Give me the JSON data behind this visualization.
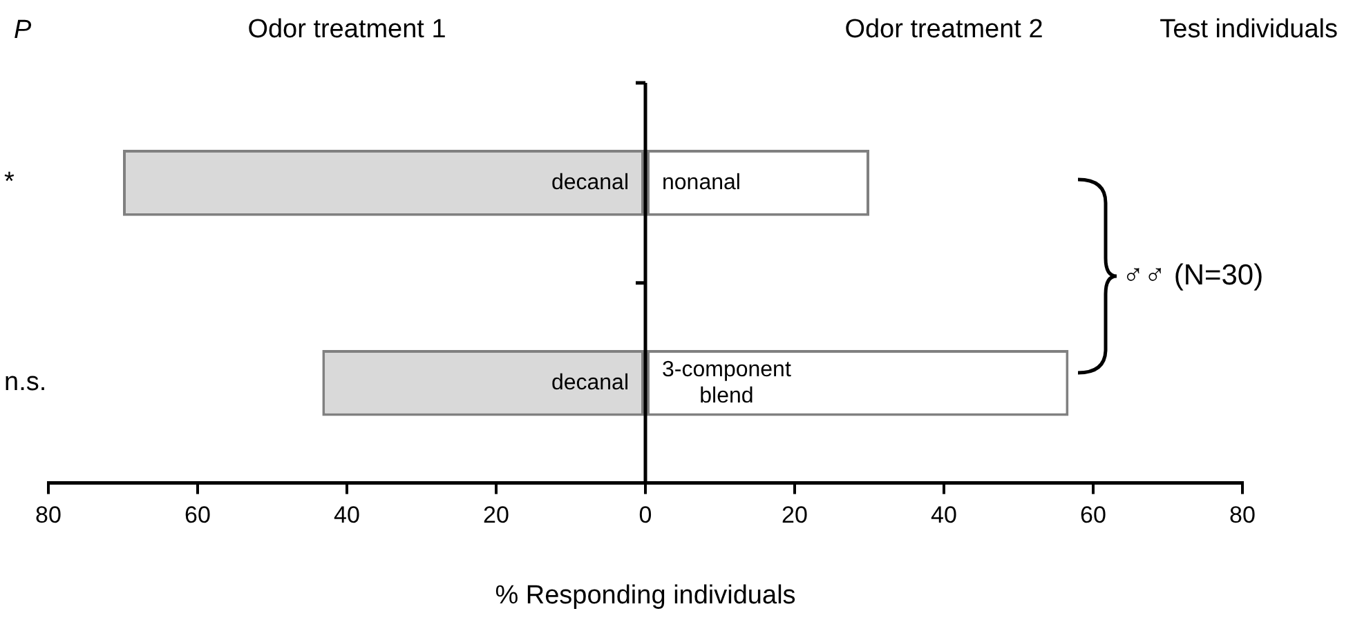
{
  "chart_data": {
    "type": "bar",
    "orientation": "horizontal",
    "stacked": true,
    "categories": [
      "*",
      "n.s."
    ],
    "series": [
      {
        "color": "#d9d9d9",
        "values": [
          -70,
          -43.3
        ]
      },
      {
        "color": "#ffffff",
        "values": [
          30,
          56.7
        ]
      }
    ],
    "xlabel": "% Responding individuals",
    "xlim": [
      -80,
      80
    ],
    "xticks": [
      {
        "value": -80,
        "label": "80"
      },
      {
        "value": -60,
        "label": "60"
      },
      {
        "value": -40,
        "label": "40"
      },
      {
        "value": -20,
        "label": "20"
      },
      0,
      20,
      40,
      60,
      80
    ],
    "annotations": [
      "P",
      "Odor treatment 1",
      "Odor treatment 2",
      "Test individuals",
      "decanal",
      "nonanal",
      "decanal",
      "3-component blend",
      "♂♂ (N=30)"
    ]
  }
}
